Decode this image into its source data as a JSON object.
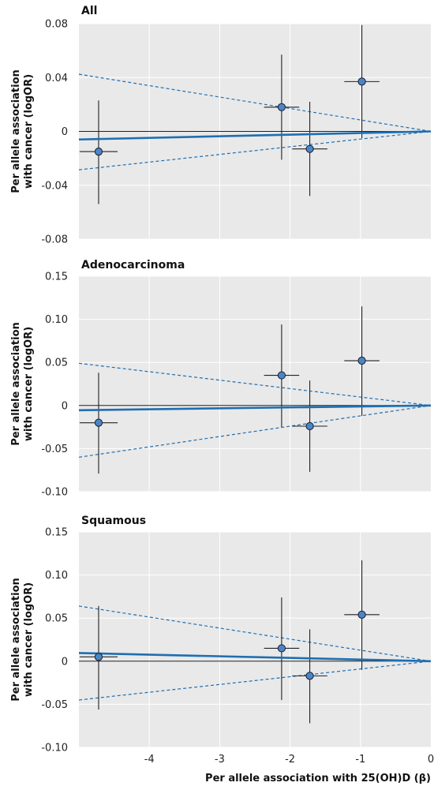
{
  "chart_data": [
    {
      "type": "scatter",
      "title": "All",
      "ylabel_lines": [
        "Per allele association",
        "with cancer (logOR)"
      ],
      "xlim": [
        -5,
        0
      ],
      "ylim": [
        -0.08,
        0.08
      ],
      "yticks": [
        0.08,
        0.04,
        0,
        -0.04,
        -0.08
      ],
      "ytick_labels": [
        "0.08",
        "0.04",
        "0",
        "-0.04",
        "-0.08"
      ],
      "points": [
        {
          "x": -4.72,
          "y": -0.015,
          "x_lo": -4.99,
          "x_hi": -4.45,
          "y_lo": -0.054,
          "y_hi": 0.023
        },
        {
          "x": -2.12,
          "y": 0.018,
          "x_lo": -2.37,
          "x_hi": -1.87,
          "y_lo": -0.021,
          "y_hi": 0.057
        },
        {
          "x": -1.72,
          "y": -0.013,
          "x_lo": -1.97,
          "x_hi": -1.47,
          "y_lo": -0.048,
          "y_hi": 0.022
        },
        {
          "x": -0.98,
          "y": 0.037,
          "x_lo": -1.23,
          "x_hi": -0.73,
          "y_lo": -0.005,
          "y_hi": 0.079
        }
      ],
      "fit": {
        "slope": 0.0012,
        "ci_slopes": [
          -0.0085,
          0.0057
        ]
      }
    },
    {
      "type": "scatter",
      "title": "Adenocarcinoma",
      "ylabel_lines": [
        "Per allele association",
        "with cancer (logOR)"
      ],
      "xlim": [
        -5,
        0
      ],
      "ylim": [
        -0.1,
        0.15
      ],
      "yticks": [
        0.15,
        0.1,
        0.05,
        0,
        -0.05,
        -0.1
      ],
      "ytick_labels": [
        "0.15",
        "0.10",
        "0.05",
        "0",
        "-0.05",
        "-0.10"
      ],
      "points": [
        {
          "x": -4.72,
          "y": -0.02,
          "x_lo": -4.99,
          "x_hi": -4.45,
          "y_lo": -0.079,
          "y_hi": 0.038
        },
        {
          "x": -2.12,
          "y": 0.035,
          "x_lo": -2.37,
          "x_hi": -1.87,
          "y_lo": -0.025,
          "y_hi": 0.094
        },
        {
          "x": -1.72,
          "y": -0.024,
          "x_lo": -1.97,
          "x_hi": -1.47,
          "y_lo": -0.077,
          "y_hi": 0.029
        },
        {
          "x": -0.98,
          "y": 0.052,
          "x_lo": -1.23,
          "x_hi": -0.73,
          "y_lo": -0.012,
          "y_hi": 0.115
        }
      ],
      "fit": {
        "slope": 0.0011,
        "ci_slopes": [
          -0.0098,
          0.012
        ]
      }
    },
    {
      "type": "scatter",
      "title": "Squamous",
      "ylabel_lines": [
        "Per allele association",
        "with cancer (logOR)"
      ],
      "xlabel": "Per allele association with 25(OH)D (β)",
      "xlim": [
        -5,
        0
      ],
      "ylim": [
        -0.1,
        0.15
      ],
      "yticks": [
        0.15,
        0.1,
        0.05,
        0,
        -0.05,
        -0.1
      ],
      "ytick_labels": [
        "0.15",
        "0.10",
        "0.05",
        "0",
        "-0.05",
        "-0.10"
      ],
      "xticks": [
        -4,
        -3,
        -2,
        -1,
        0
      ],
      "xtick_labels": [
        "-4",
        "-3",
        "-2",
        "-1",
        "0"
      ],
      "points": [
        {
          "x": -4.72,
          "y": 0.005,
          "x_lo": -4.99,
          "x_hi": -4.45,
          "y_lo": -0.056,
          "y_hi": 0.064
        },
        {
          "x": -2.12,
          "y": 0.015,
          "x_lo": -2.37,
          "x_hi": -1.87,
          "y_lo": -0.045,
          "y_hi": 0.074
        },
        {
          "x": -1.72,
          "y": -0.017,
          "x_lo": -1.97,
          "x_hi": -1.47,
          "y_lo": -0.072,
          "y_hi": 0.037
        },
        {
          "x": -0.98,
          "y": 0.054,
          "x_lo": -1.23,
          "x_hi": -0.73,
          "y_lo": -0.01,
          "y_hi": 0.117
        }
      ],
      "fit": {
        "slope": -0.0019,
        "ci_slopes": [
          -0.0128,
          0.009
        ]
      }
    }
  ],
  "colors": {
    "panel_bg": "#e9e9e9",
    "grid": "#ffffff",
    "errorbar": "#222222",
    "zero_line": "#222222",
    "fit_line": "#1f6eb0",
    "point_fill": "#4a86c5",
    "point_stroke": "#1a1a2e"
  }
}
